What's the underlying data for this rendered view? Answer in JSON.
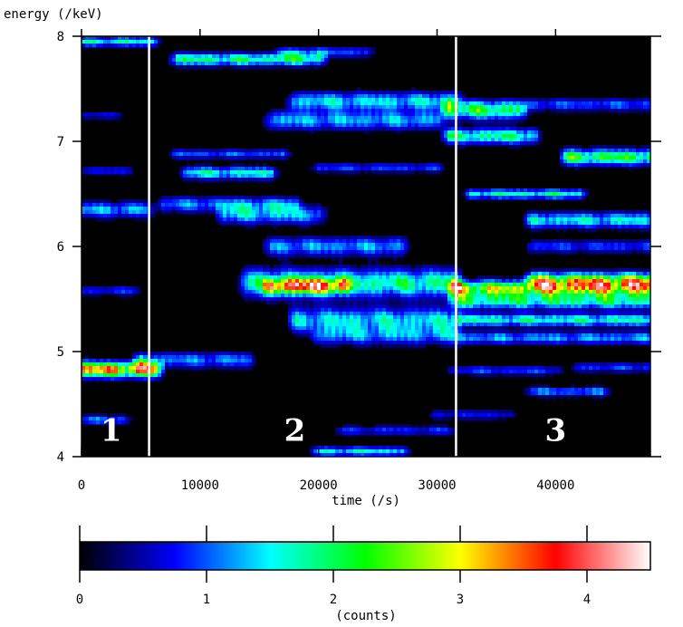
{
  "chart_data": {
    "type": "heatmap",
    "title": "",
    "xlabel": "time (/s)",
    "ylabel": "energy (/keV)",
    "xlim": [
      0,
      48000
    ],
    "ylim": [
      4,
      8
    ],
    "x_ticks": [
      0,
      10000,
      20000,
      30000,
      40000
    ],
    "x_tick_labels": [
      "0",
      "10000",
      "20000",
      "30000",
      "40000"
    ],
    "y_ticks": [
      4,
      5,
      6,
      7,
      8
    ],
    "y_tick_labels": [
      "4",
      "5",
      "6",
      "7",
      "8"
    ],
    "colorbar": {
      "label": "(counts)",
      "range": [
        0,
        4.5
      ],
      "ticks": [
        0,
        1,
        2,
        3,
        4
      ],
      "tick_labels": [
        "0",
        "1",
        "2",
        "3",
        "4"
      ],
      "colormap": [
        "#000000",
        "#0000ff",
        "#00ffff",
        "#00ff00",
        "#ffff00",
        "#ff0000",
        "#ffffff"
      ]
    },
    "boundaries": [
      5700,
      31600
    ],
    "regions": [
      {
        "label": "1",
        "x": 2500,
        "y": 4.15
      },
      {
        "label": "2",
        "x": 18000,
        "y": 4.15
      },
      {
        "label": "3",
        "x": 40000,
        "y": 4.15
      }
    ],
    "bands": [
      {
        "t0": 0,
        "t1": 6200,
        "e": 4.83,
        "peak": 4.2,
        "width": 0.05
      },
      {
        "t0": 5000,
        "t1": 14000,
        "e": 4.92,
        "peak": 1.4,
        "width": 0.05
      },
      {
        "t0": 0,
        "t1": 6000,
        "e": 7.95,
        "peak": 2.0,
        "width": 0.03
      },
      {
        "t0": 0,
        "t1": 5500,
        "e": 6.35,
        "peak": 1.6,
        "width": 0.05
      },
      {
        "t0": 0,
        "t1": 4500,
        "e": 5.58,
        "peak": 1.0,
        "width": 0.03
      },
      {
        "t0": 0,
        "t1": 3500,
        "e": 4.35,
        "peak": 1.3,
        "width": 0.03
      },
      {
        "t0": 0,
        "t1": 4000,
        "e": 6.72,
        "peak": 0.9,
        "width": 0.03
      },
      {
        "t0": 0,
        "t1": 3000,
        "e": 7.25,
        "peak": 0.8,
        "width": 0.025
      },
      {
        "t0": 8000,
        "t1": 20000,
        "e": 7.78,
        "peak": 2.3,
        "width": 0.04
      },
      {
        "t0": 17000,
        "t1": 24000,
        "e": 7.85,
        "peak": 1.2,
        "width": 0.035
      },
      {
        "t0": 9000,
        "t1": 16000,
        "e": 6.7,
        "peak": 2.0,
        "width": 0.04
      },
      {
        "t0": 8000,
        "t1": 17000,
        "e": 6.88,
        "peak": 1.2,
        "width": 0.03
      },
      {
        "t0": 7000,
        "t1": 18000,
        "e": 6.4,
        "peak": 1.4,
        "width": 0.05
      },
      {
        "t0": 12000,
        "t1": 20000,
        "e": 6.3,
        "peak": 1.6,
        "width": 0.06
      },
      {
        "t0": 16000,
        "t1": 27000,
        "e": 6.0,
        "peak": 1.5,
        "width": 0.06
      },
      {
        "t0": 14000,
        "t1": 31500,
        "e": 5.65,
        "peak": 2.3,
        "width": 0.09
      },
      {
        "t0": 16000,
        "t1": 22000,
        "e": 5.62,
        "peak": 2.9,
        "width": 0.05
      },
      {
        "t0": 18000,
        "t1": 31500,
        "e": 5.3,
        "peak": 1.8,
        "width": 0.08
      },
      {
        "t0": 20000,
        "t1": 31500,
        "e": 5.15,
        "peak": 1.3,
        "width": 0.06
      },
      {
        "t0": 16000,
        "t1": 30000,
        "e": 7.2,
        "peak": 1.6,
        "width": 0.06
      },
      {
        "t0": 18000,
        "t1": 31500,
        "e": 7.38,
        "peak": 1.8,
        "width": 0.06
      },
      {
        "t0": 20000,
        "t1": 30000,
        "e": 6.75,
        "peak": 1.1,
        "width": 0.03
      },
      {
        "t0": 20000,
        "t1": 27000,
        "e": 4.05,
        "peak": 1.9,
        "width": 0.03
      },
      {
        "t0": 22000,
        "t1": 31000,
        "e": 4.25,
        "peak": 1.0,
        "width": 0.03
      },
      {
        "t0": 31500,
        "t1": 48000,
        "e": 5.6,
        "peak": 3.4,
        "width": 0.05
      },
      {
        "t0": 38000,
        "t1": 48000,
        "e": 5.68,
        "peak": 3.0,
        "width": 0.05
      },
      {
        "t0": 31500,
        "t1": 48000,
        "e": 5.48,
        "peak": 2.2,
        "width": 0.05
      },
      {
        "t0": 32000,
        "t1": 48000,
        "e": 5.3,
        "peak": 2.1,
        "width": 0.04
      },
      {
        "t0": 32000,
        "t1": 48000,
        "e": 5.13,
        "peak": 1.5,
        "width": 0.04
      },
      {
        "t0": 31000,
        "t1": 37000,
        "e": 7.3,
        "peak": 2.6,
        "width": 0.06
      },
      {
        "t0": 31000,
        "t1": 38000,
        "e": 7.05,
        "peak": 2.3,
        "width": 0.05
      },
      {
        "t0": 38000,
        "t1": 48000,
        "e": 7.35,
        "peak": 1.2,
        "width": 0.04
      },
      {
        "t0": 41000,
        "t1": 48000,
        "e": 6.85,
        "peak": 2.7,
        "width": 0.05
      },
      {
        "t0": 33000,
        "t1": 42000,
        "e": 6.5,
        "peak": 2.1,
        "width": 0.03
      },
      {
        "t0": 38000,
        "t1": 48000,
        "e": 6.25,
        "peak": 1.9,
        "width": 0.05
      },
      {
        "t0": 38000,
        "t1": 48000,
        "e": 6.0,
        "peak": 1.1,
        "width": 0.04
      },
      {
        "t0": 31500,
        "t1": 40000,
        "e": 4.82,
        "peak": 1.1,
        "width": 0.03
      },
      {
        "t0": 38000,
        "t1": 44000,
        "e": 4.62,
        "peak": 1.4,
        "width": 0.03
      },
      {
        "t0": 42000,
        "t1": 48000,
        "e": 4.85,
        "peak": 1.1,
        "width": 0.03
      },
      {
        "t0": 30000,
        "t1": 36000,
        "e": 4.4,
        "peak": 0.9,
        "width": 0.03
      }
    ]
  }
}
